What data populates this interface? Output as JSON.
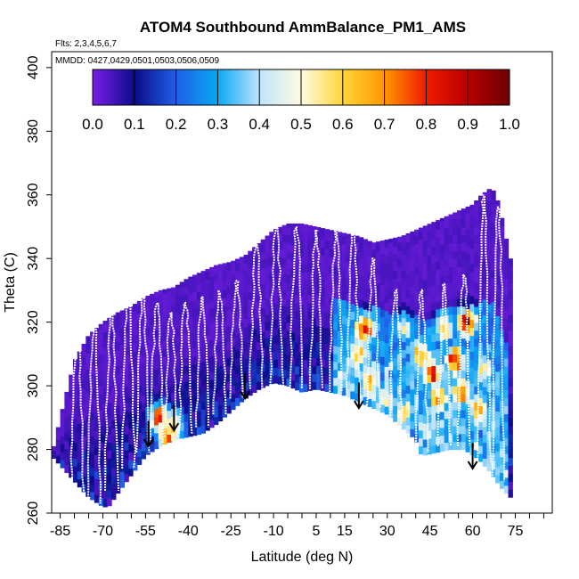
{
  "chart_data": {
    "type": "heatmap",
    "title": "ATOM4 Southbound AmmBalance_PM1_AMS",
    "flights_label": "Flts: 2,3,4,5,6,7",
    "dates_label": "MMDD: 0427,0429,0501,0503,0506,0509",
    "xlabel": "Latitude (deg N)",
    "ylabel": "Theta (C)",
    "xlim": [
      -88,
      88
    ],
    "ylim": [
      260,
      405
    ],
    "x_ticks": [
      -85,
      -70,
      -55,
      -40,
      -25,
      -10,
      5,
      15,
      30,
      45,
      60,
      75
    ],
    "y_ticks": [
      260,
      280,
      300,
      320,
      340,
      360,
      380,
      400
    ],
    "colorbar": {
      "range": [
        0,
        1
      ],
      "ticks": [
        "0.0",
        "0.1",
        "0.2",
        "0.3",
        "0.4",
        "0.5",
        "0.6",
        "0.7",
        "0.8",
        "0.9",
        "1.0"
      ],
      "colors": [
        "#7a1ee8",
        "#0b0b8a",
        "#1f5fe6",
        "#0aa8f5",
        "#bfe4fb",
        "#fffbe2",
        "#ffd53a",
        "#ff9800",
        "#f01a00",
        "#b80000",
        "#6e0000"
      ]
    },
    "top_boundary": [
      [
        -88,
        278
      ],
      [
        -85,
        290
      ],
      [
        -80,
        308
      ],
      [
        -75,
        316
      ],
      [
        -70,
        320
      ],
      [
        -65,
        323
      ],
      [
        -60,
        325
      ],
      [
        -55,
        328
      ],
      [
        -50,
        330
      ],
      [
        -45,
        331
      ],
      [
        -40,
        334
      ],
      [
        -35,
        336
      ],
      [
        -30,
        338
      ],
      [
        -25,
        339
      ],
      [
        -20,
        341
      ],
      [
        -15,
        345
      ],
      [
        -10,
        349
      ],
      [
        -5,
        351
      ],
      [
        0,
        351
      ],
      [
        5,
        350
      ],
      [
        10,
        349
      ],
      [
        15,
        348
      ],
      [
        20,
        347
      ],
      [
        25,
        345
      ],
      [
        30,
        346
      ],
      [
        35,
        347
      ],
      [
        40,
        349
      ],
      [
        45,
        351
      ],
      [
        50,
        353
      ],
      [
        55,
        355
      ],
      [
        60,
        357
      ],
      [
        63,
        360
      ],
      [
        66,
        362
      ],
      [
        68,
        361
      ],
      [
        71,
        350
      ],
      [
        73,
        340
      ],
      [
        74,
        320
      ]
    ],
    "bottom_boundary": [
      [
        -88,
        278
      ],
      [
        -85,
        275
      ],
      [
        -80,
        270
      ],
      [
        -75,
        265
      ],
      [
        -70,
        262
      ],
      [
        -68,
        262
      ],
      [
        -65,
        266
      ],
      [
        -60,
        272
      ],
      [
        -55,
        278
      ],
      [
        -50,
        281
      ],
      [
        -45,
        283
      ],
      [
        -40,
        284
      ],
      [
        -35,
        285
      ],
      [
        -30,
        288
      ],
      [
        -25,
        292
      ],
      [
        -20,
        296
      ],
      [
        -15,
        299
      ],
      [
        -10,
        301
      ],
      [
        -5,
        300
      ],
      [
        0,
        298
      ],
      [
        5,
        299
      ],
      [
        10,
        298
      ],
      [
        15,
        297
      ],
      [
        20,
        295
      ],
      [
        25,
        293
      ],
      [
        30,
        291
      ],
      [
        35,
        287
      ],
      [
        40,
        283
      ],
      [
        42,
        278
      ],
      [
        47,
        279
      ],
      [
        52,
        280
      ],
      [
        57,
        280
      ],
      [
        62,
        277
      ],
      [
        66,
        273
      ],
      [
        70,
        268
      ],
      [
        73,
        265
      ],
      [
        74,
        320
      ]
    ],
    "hotspots": [
      {
        "lat": -50,
        "theta": 290,
        "value": 0.8
      },
      {
        "lat": -47,
        "theta": 284,
        "value": 0.75
      },
      {
        "lat": -45,
        "theta": 288,
        "value": 0.65
      },
      {
        "lat": 22,
        "theta": 318,
        "value": 0.85
      },
      {
        "lat": 20,
        "theta": 310,
        "value": 0.7
      },
      {
        "lat": 24,
        "theta": 302,
        "value": 0.65
      },
      {
        "lat": 30,
        "theta": 296,
        "value": 0.55
      },
      {
        "lat": 36,
        "theta": 292,
        "value": 0.6
      },
      {
        "lat": 42,
        "theta": 310,
        "value": 0.72
      },
      {
        "lat": 46,
        "theta": 304,
        "value": 0.82
      },
      {
        "lat": 48,
        "theta": 296,
        "value": 0.7
      },
      {
        "lat": 50,
        "theta": 318,
        "value": 0.6
      },
      {
        "lat": 54,
        "theta": 308,
        "value": 0.88
      },
      {
        "lat": 56,
        "theta": 298,
        "value": 0.75
      },
      {
        "lat": 58,
        "theta": 320,
        "value": 0.9
      },
      {
        "lat": 62,
        "theta": 293,
        "value": 0.65
      },
      {
        "lat": 64,
        "theta": 305,
        "value": 0.55
      },
      {
        "lat": 45,
        "theta": 286,
        "value": 0.5
      },
      {
        "lat": 36,
        "theta": 318,
        "value": 0.55
      }
    ],
    "profiles": [
      {
        "lat": -79,
        "theta_top": 318,
        "theta_bottom": 266
      },
      {
        "lat": -73,
        "theta_top": 320,
        "theta_bottom": 263
      },
      {
        "lat": -67,
        "theta_top": 325,
        "theta_bottom": 267
      },
      {
        "lat": -61,
        "theta_top": 330,
        "theta_bottom": 274
      },
      {
        "lat": -56,
        "theta_top": 328,
        "theta_bottom": 279
      },
      {
        "lat": -51,
        "theta_top": 326,
        "theta_bottom": 282
      },
      {
        "lat": -46,
        "theta_top": 323,
        "theta_bottom": 284
      },
      {
        "lat": -41,
        "theta_top": 326,
        "theta_bottom": 285
      },
      {
        "lat": -35,
        "theta_top": 328,
        "theta_bottom": 287
      },
      {
        "lat": -29,
        "theta_top": 330,
        "theta_bottom": 291
      },
      {
        "lat": -23,
        "theta_top": 333,
        "theta_bottom": 296
      },
      {
        "lat": -16,
        "theta_top": 345,
        "theta_bottom": 299
      },
      {
        "lat": -9,
        "theta_top": 351,
        "theta_bottom": 300
      },
      {
        "lat": -2,
        "theta_top": 350,
        "theta_bottom": 299
      },
      {
        "lat": 5,
        "theta_top": 349,
        "theta_bottom": 299
      },
      {
        "lat": 12,
        "theta_top": 349,
        "theta_bottom": 298
      },
      {
        "lat": 18,
        "theta_top": 348,
        "theta_bottom": 296
      },
      {
        "lat": 25,
        "theta_top": 340,
        "theta_bottom": 293
      },
      {
        "lat": 33,
        "theta_top": 330,
        "theta_bottom": 288
      },
      {
        "lat": 42,
        "theta_top": 330,
        "theta_bottom": 279
      },
      {
        "lat": 50,
        "theta_top": 332,
        "theta_bottom": 281
      },
      {
        "lat": 57,
        "theta_top": 335,
        "theta_bottom": 281
      },
      {
        "lat": 64,
        "theta_top": 360,
        "theta_bottom": 276
      },
      {
        "lat": 69,
        "theta_top": 356,
        "theta_bottom": 270
      }
    ],
    "arrows": [
      {
        "lat": -54,
        "theta": 281
      },
      {
        "lat": -45,
        "theta": 286
      },
      {
        "lat": -20,
        "theta": 296
      },
      {
        "lat": 20,
        "theta": 293
      },
      {
        "lat": 60,
        "theta": 274
      }
    ]
  }
}
